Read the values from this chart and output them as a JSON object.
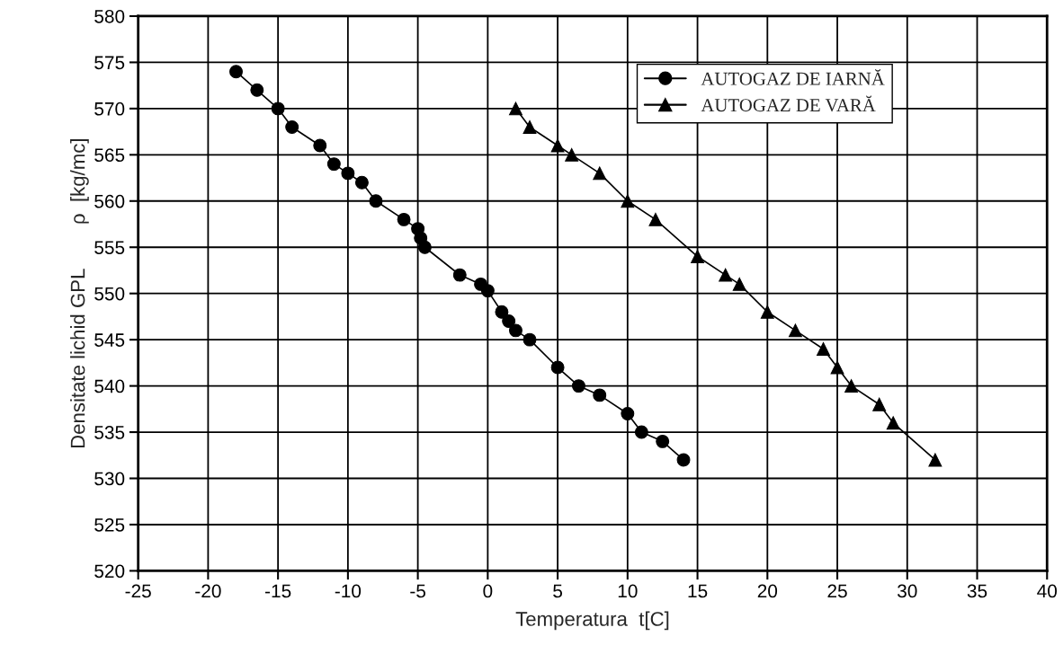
{
  "chart_data": {
    "type": "line",
    "xlabel": "Temperatura  t[C]",
    "ylabel": "Densitate lichid GPL        ρ  [kg/mc]",
    "xlim": [
      -25,
      40
    ],
    "xticks": [
      -25,
      -20,
      -15,
      -10,
      -5,
      0,
      5,
      10,
      15,
      20,
      25,
      30,
      35,
      40
    ],
    "ylim": [
      520,
      580
    ],
    "yticks": [
      520,
      525,
      530,
      535,
      540,
      545,
      550,
      555,
      560,
      565,
      570,
      575,
      580
    ],
    "grid": true,
    "legend": "top right",
    "line_style": "solid",
    "series": [
      {
        "name": "AUTOGAZ DE IARNĂ",
        "color": "#000000",
        "marker": "circle",
        "x": [
          -18,
          -16.5,
          -15,
          -14,
          -12,
          -11,
          -10,
          -9,
          -8,
          -6,
          -5,
          -4.8,
          -4.5,
          -2,
          -0.5,
          0,
          1,
          1.5,
          2,
          3,
          5,
          6.5,
          8,
          10,
          11,
          12.5,
          14
        ],
        "values": [
          574,
          572,
          570,
          568,
          566,
          564,
          563,
          562,
          560,
          558,
          557,
          556,
          555,
          552,
          551,
          550.3,
          548,
          547,
          546,
          545,
          542,
          540,
          539,
          537,
          535,
          534,
          532
        ]
      },
      {
        "name": "AUTOGAZ DE VARĂ",
        "color": "#000000",
        "marker": "triangle",
        "x": [
          2,
          3,
          5,
          6,
          8,
          10,
          12,
          15,
          17,
          18,
          20,
          22,
          24,
          25,
          26,
          28,
          29,
          32
        ],
        "values": [
          570,
          568,
          566,
          565,
          563,
          560,
          558,
          554,
          552,
          551,
          548,
          546,
          544,
          542,
          540,
          538,
          536,
          532
        ]
      }
    ]
  }
}
